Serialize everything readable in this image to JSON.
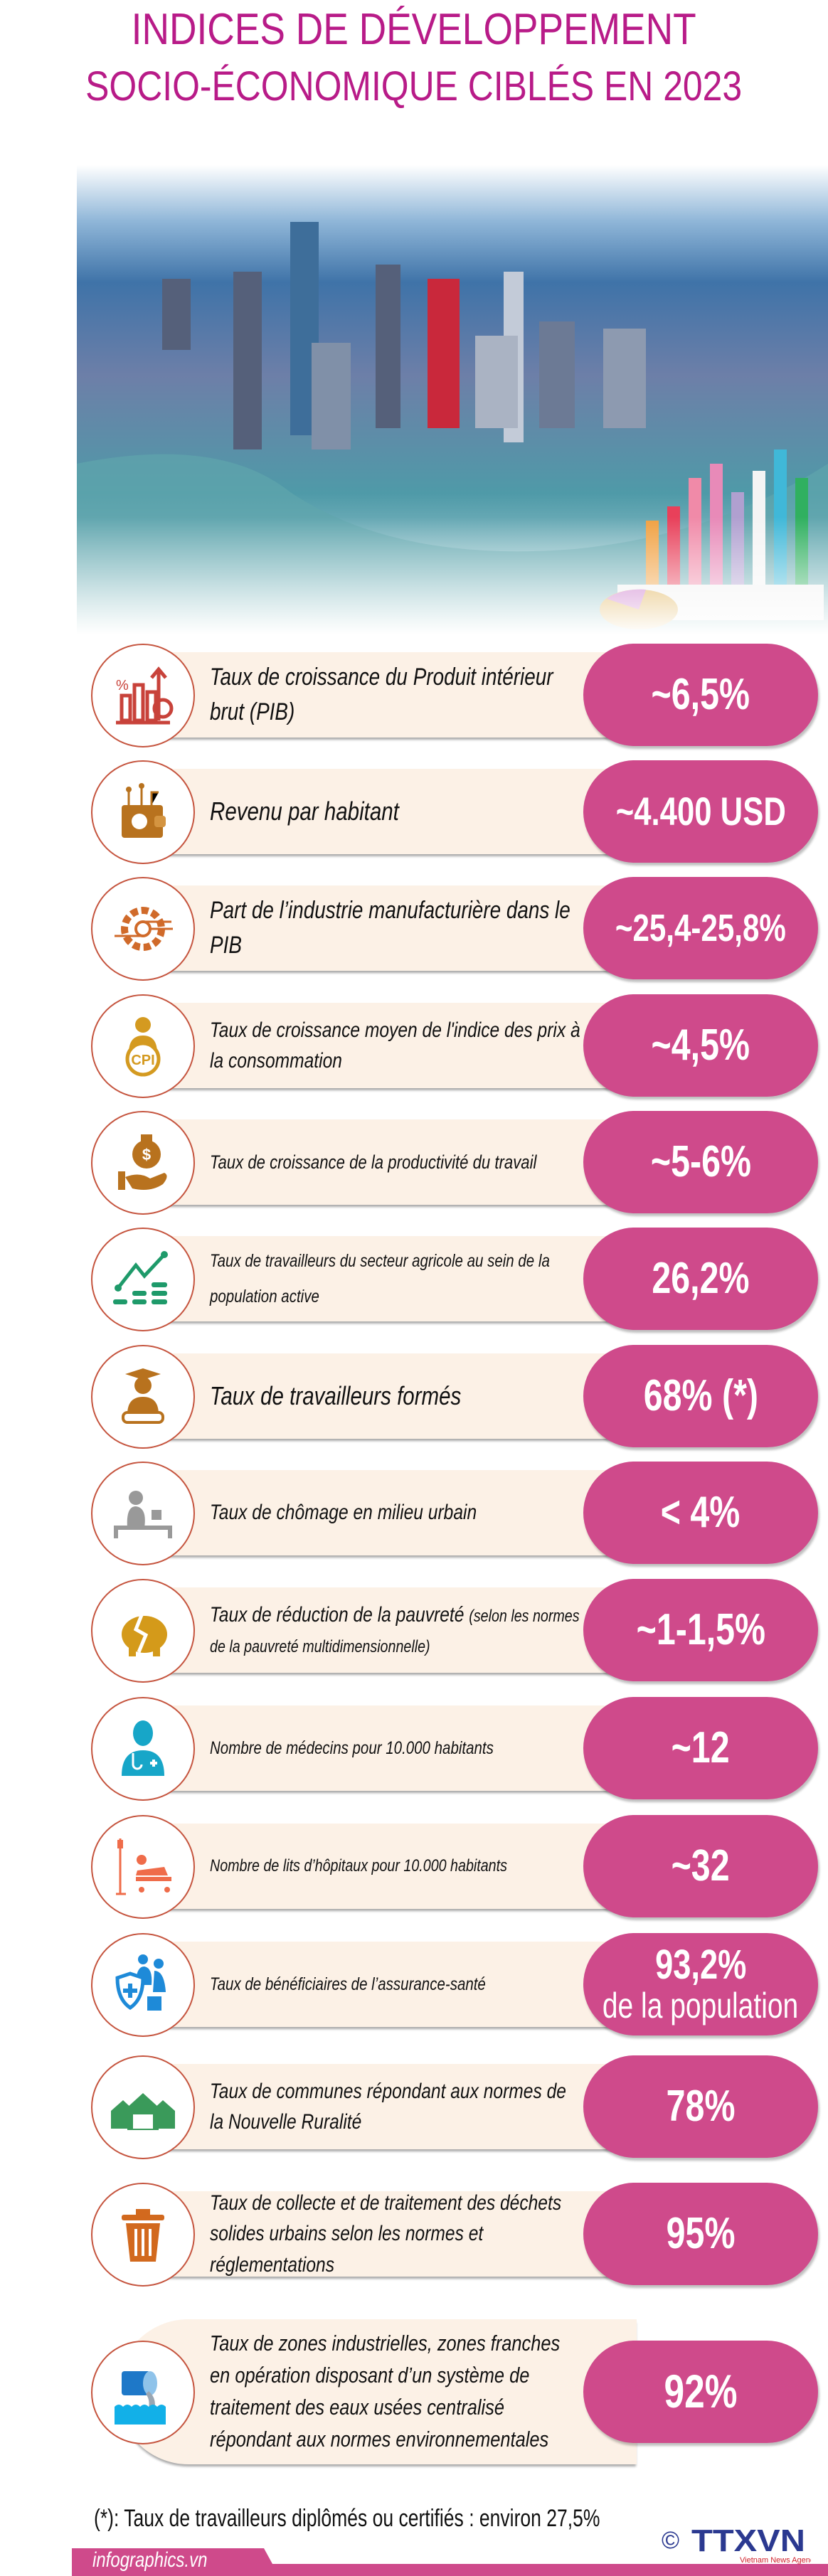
{
  "header": {
    "title_line1": "INDICES DE DÉVELOPPEMENT",
    "title_line2": "SOCIO-ÉCONOMIQUE CIBLÉS EN 2023"
  },
  "colors": {
    "title": "#b81b88",
    "pill": "#cf4a8b",
    "box": "#fcf1e6",
    "circle_border": "#c5543e"
  },
  "indicators": [
    {
      "icon": "gdp-growth-chart-icon",
      "label": "Taux de croissance du Produit intérieur brut (PIB)",
      "value": "~6,5%"
    },
    {
      "icon": "wallet-icon",
      "label": "Revenu par habitant",
      "value": "~4.400 USD"
    },
    {
      "icon": "gear-circuit-icon",
      "label": "Part de l’industrie manufacturière dans le PIB",
      "value": "~25,4-25,8%"
    },
    {
      "icon": "cpi-person-icon",
      "label": "Taux de croissance moyen de l'indice des prix à la consommation",
      "value": "~4,5%"
    },
    {
      "icon": "money-bag-hand-icon",
      "label": "Taux de croissance de la productivité du travail",
      "value": "~5-6%"
    },
    {
      "icon": "trend-line-icon",
      "label": "Taux de travailleurs du secteur agricole au sein de la population active",
      "value": "26,2%"
    },
    {
      "icon": "graduate-icon",
      "label": "Taux de travailleurs formés",
      "value": "68% (*)"
    },
    {
      "icon": "unemployed-person-icon",
      "label": "Taux de chômage en milieu urbain",
      "value": "< 4%"
    },
    {
      "icon": "broken-piggy-bank-icon",
      "label": "Taux de réduction de la pauvreté",
      "label_note": "(selon les normes de la pauvreté multidimensionnelle)",
      "value": "~1-1,5%"
    },
    {
      "icon": "doctor-icon",
      "label": "Nombre de médecins pour 10.000 habitants",
      "value": "~12"
    },
    {
      "icon": "hospital-bed-icon",
      "label": "Nombre de lits d’hôpitaux pour 10.000 habitants",
      "value": "~32"
    },
    {
      "icon": "health-insurance-family-icon",
      "label": "Taux de bénéficiaires de l’assurance-santé",
      "value": "93,2%",
      "value_sub": "de la population"
    },
    {
      "icon": "village-houses-icon",
      "label": "Taux de communes répondant aux normes de la Nouvelle Ruralité",
      "value": "78%"
    },
    {
      "icon": "trash-bin-icon",
      "label": "Taux de collecte et de traitement des déchets solides urbains selon les normes et réglementations",
      "value": "95%"
    },
    {
      "icon": "waste-water-pipe-icon",
      "label": "Taux de zones industrielles, zones franches en opération disposant d’un système de traitement des eaux usées centralisé répondant aux normes environnementales",
      "value": "92%"
    }
  ],
  "footer": {
    "note": "(*): Taux de travailleurs diplômés ou certifiés : environ 27,5%",
    "site": "infographics.vn",
    "logo_text": "TTXVN",
    "logo_sub": "Vietnam News Agency",
    "copyright": "©"
  }
}
